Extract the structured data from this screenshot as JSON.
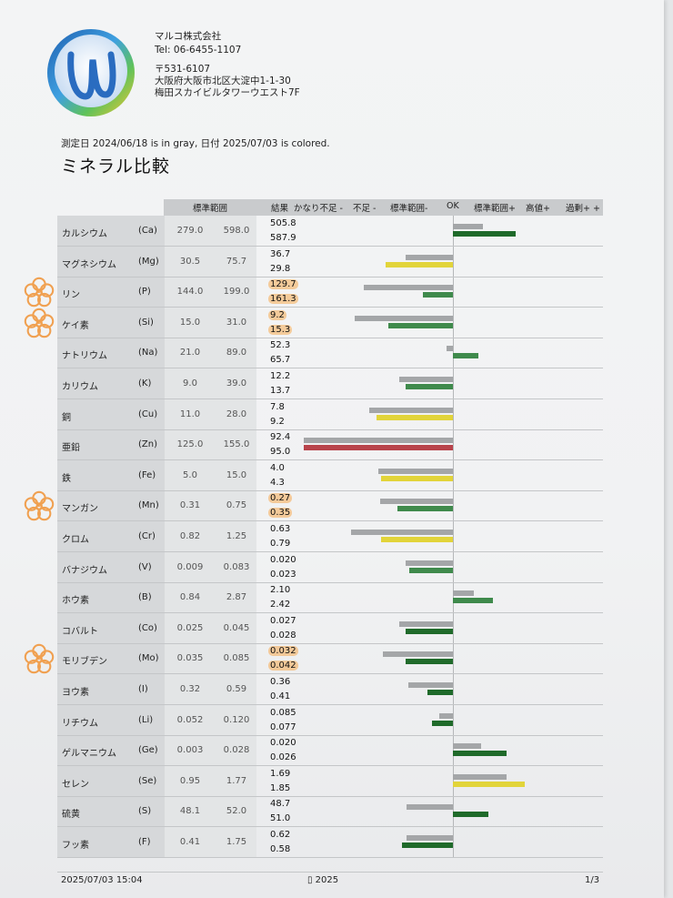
{
  "company": {
    "name": "マルコ株式会社",
    "tel": "Tel: 06-6455-1107",
    "zip": "〒531-6107",
    "address1": "大阪府大阪市北区大淀中1-1-30",
    "address2": "梅田スカイビルタワーウエスト7F"
  },
  "measure_note": "測定日 2024/06/18 is in gray, 日付 2025/07/03 is colored.",
  "title": "ミネラル比較",
  "header": {
    "range": "標準範囲",
    "result": "結果",
    "very_low": "かなり不足 -",
    "low": "不足 -",
    "range_minus": "標準範囲-",
    "ok": "OK",
    "range_plus": "標準範囲+",
    "high": "高値+",
    "excess": "過剰+ +"
  },
  "colors": {
    "gray": "#a4a6a8",
    "green": "#3f8a4c",
    "dark_green": "#1f6a2a",
    "yellow": "#e2d43a",
    "red": "#b8434b",
    "highlight": "#f5aa50"
  },
  "minerals": [
    {
      "name": "カルシウム",
      "symbol": "(Ca)",
      "range_low": "279.0",
      "range_high": "598.0",
      "prev": "505.8",
      "curr": "587.9",
      "prev_level": 0.2,
      "curr_level": 0.42,
      "curr_color": "dark_green",
      "highlight": false
    },
    {
      "name": "マグネシウム",
      "symbol": "(Mg)",
      "range_low": "30.5",
      "range_high": "75.7",
      "prev": "36.7",
      "curr": "29.8",
      "prev_level": -0.32,
      "curr_level": -0.45,
      "curr_color": "yellow",
      "highlight": false
    },
    {
      "name": "リン",
      "symbol": "(P)",
      "range_low": "144.0",
      "range_high": "199.0",
      "prev": "129.7",
      "curr": "161.3",
      "prev_level": -0.6,
      "curr_level": -0.2,
      "curr_color": "green",
      "highlight": true
    },
    {
      "name": "ケイ素",
      "symbol": "(Si)",
      "range_low": "15.0",
      "range_high": "31.0",
      "prev": "9.2",
      "curr": "15.3",
      "prev_level": -0.66,
      "curr_level": -0.43,
      "curr_color": "green",
      "highlight": true
    },
    {
      "name": "ナトリウム",
      "symbol": "(Na)",
      "range_low": "21.0",
      "range_high": "89.0",
      "prev": "52.3",
      "curr": "65.7",
      "prev_level": -0.04,
      "curr_level": 0.17,
      "curr_color": "green",
      "highlight": false
    },
    {
      "name": "カリウム",
      "symbol": "(K)",
      "range_low": "9.0",
      "range_high": "39.0",
      "prev": "12.2",
      "curr": "13.7",
      "prev_level": -0.36,
      "curr_level": -0.32,
      "curr_color": "green",
      "highlight": false
    },
    {
      "name": "銅",
      "symbol": "(Cu)",
      "range_low": "11.0",
      "range_high": "28.0",
      "prev": "7.8",
      "curr": "9.2",
      "prev_level": -0.56,
      "curr_level": -0.51,
      "curr_color": "yellow",
      "highlight": false
    },
    {
      "name": "亜鉛",
      "symbol": "(Zn)",
      "range_low": "125.0",
      "range_high": "155.0",
      "prev": "92.4",
      "curr": "95.0",
      "prev_level": -1.0,
      "curr_level": -1.0,
      "curr_color": "red",
      "highlight": false
    },
    {
      "name": "鉄",
      "symbol": "(Fe)",
      "range_low": "5.0",
      "range_high": "15.0",
      "prev": "4.0",
      "curr": "4.3",
      "prev_level": -0.5,
      "curr_level": -0.48,
      "curr_color": "yellow",
      "highlight": false
    },
    {
      "name": "マンガン",
      "symbol": "(Mn)",
      "range_low": "0.31",
      "range_high": "0.75",
      "prev": "0.27",
      "curr": "0.35",
      "prev_level": -0.49,
      "curr_level": -0.37,
      "curr_color": "green",
      "highlight": true
    },
    {
      "name": "クロム",
      "symbol": "(Cr)",
      "range_low": "0.82",
      "range_high": "1.25",
      "prev": "0.63",
      "curr": "0.79",
      "prev_level": -0.68,
      "curr_level": -0.48,
      "curr_color": "yellow",
      "highlight": false
    },
    {
      "name": "バナジウム",
      "symbol": "(V)",
      "range_low": "0.009",
      "range_high": "0.083",
      "prev": "0.020",
      "curr": "0.023",
      "prev_level": -0.32,
      "curr_level": -0.29,
      "curr_color": "green",
      "highlight": false
    },
    {
      "name": "ホウ素",
      "symbol": "(B)",
      "range_low": "0.84",
      "range_high": "2.87",
      "prev": "2.10",
      "curr": "2.42",
      "prev_level": 0.14,
      "curr_level": 0.27,
      "curr_color": "green",
      "highlight": false
    },
    {
      "name": "コバルト",
      "symbol": "(Co)",
      "range_low": "0.025",
      "range_high": "0.045",
      "prev": "0.027",
      "curr": "0.028",
      "prev_level": -0.36,
      "curr_level": -0.32,
      "curr_color": "dark_green",
      "highlight": false
    },
    {
      "name": "モリブデン",
      "symbol": "(Mo)",
      "range_low": "0.035",
      "range_high": "0.085",
      "prev": "0.032",
      "curr": "0.042",
      "prev_level": -0.47,
      "curr_level": -0.32,
      "curr_color": "dark_green",
      "highlight": true
    },
    {
      "name": "ヨウ素",
      "symbol": "(I)",
      "range_low": "0.32",
      "range_high": "0.59",
      "prev": "0.36",
      "curr": "0.41",
      "prev_level": -0.3,
      "curr_level": -0.17,
      "curr_color": "dark_green",
      "highlight": false
    },
    {
      "name": "リチウム",
      "symbol": "(Li)",
      "range_low": "0.052",
      "range_high": "0.120",
      "prev": "0.085",
      "curr": "0.077",
      "prev_level": -0.09,
      "curr_level": -0.14,
      "curr_color": "dark_green",
      "highlight": false
    },
    {
      "name": "ゲルマニウム",
      "symbol": "(Ge)",
      "range_low": "0.003",
      "range_high": "0.028",
      "prev": "0.020",
      "curr": "0.026",
      "prev_level": 0.19,
      "curr_level": 0.36,
      "curr_color": "dark_green",
      "highlight": false
    },
    {
      "name": "セレン",
      "symbol": "(Se)",
      "range_low": "0.95",
      "range_high": "1.77",
      "prev": "1.69",
      "curr": "1.85",
      "prev_level": 0.36,
      "curr_level": 0.48,
      "curr_color": "yellow",
      "highlight": false
    },
    {
      "name": "硫黄",
      "symbol": "(S)",
      "range_low": "48.1",
      "range_high": "52.0",
      "prev": "48.7",
      "curr": "51.0",
      "prev_level": -0.31,
      "curr_level": 0.24,
      "curr_color": "dark_green",
      "highlight": false
    },
    {
      "name": "フッ素",
      "symbol": "(F)",
      "range_low": "0.41",
      "range_high": "1.75",
      "prev": "0.62",
      "curr": "0.58",
      "prev_level": -0.31,
      "curr_level": -0.34,
      "curr_color": "dark_green",
      "highlight": false
    }
  ],
  "footer": {
    "datetime": "2025/07/03 15:04",
    "center": "▯ 2025",
    "page": "1/3"
  }
}
